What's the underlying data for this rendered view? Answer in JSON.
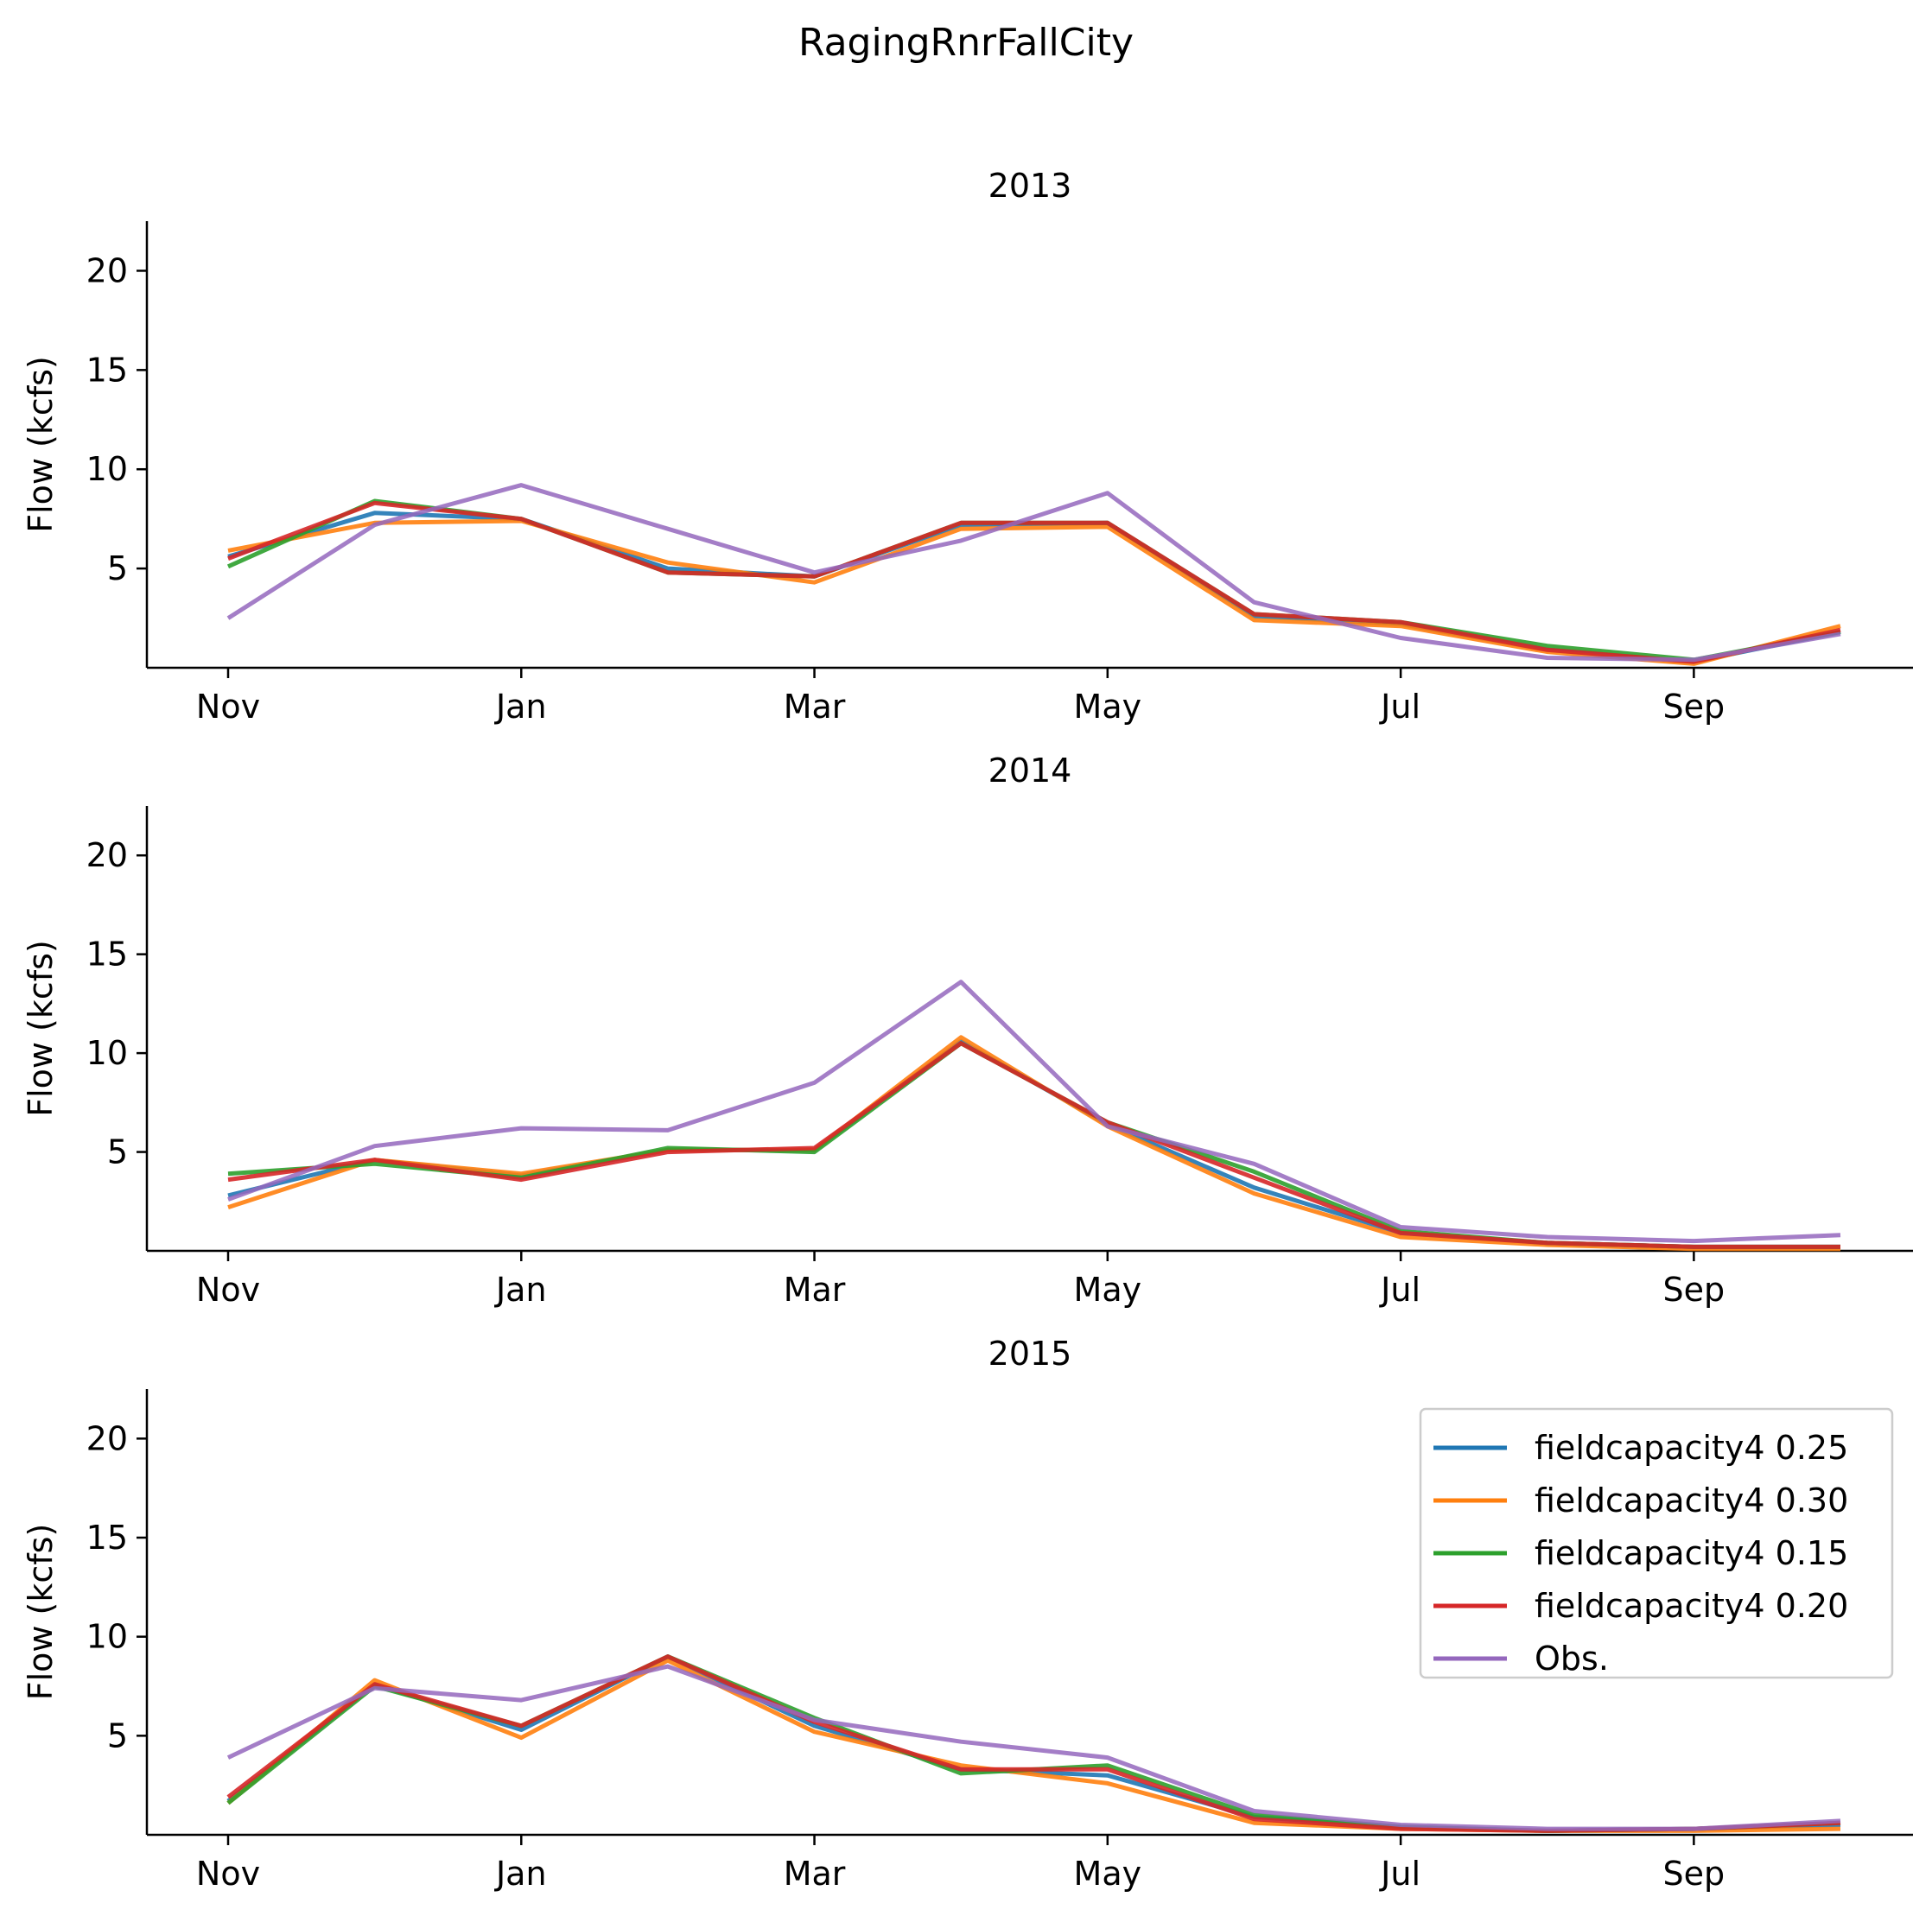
{
  "figure": {
    "title": "RagingRnrFallCity"
  },
  "chart_data": [
    {
      "type": "line",
      "title": "2013",
      "xlabel": "",
      "ylabel": "Flow (kcfs)",
      "x": [
        "Nov",
        "Dec",
        "Jan",
        "Feb",
        "Mar",
        "Apr",
        "May",
        "Jun",
        "Jul",
        "Aug",
        "Sep",
        "Oct"
      ],
      "x_tick_labels": [
        "Nov",
        "Jan",
        "Mar",
        "May",
        "Jul",
        "Sep"
      ],
      "y_ticks": [
        5,
        10,
        15,
        20
      ],
      "ylim": [
        0,
        22.5
      ],
      "series": [
        {
          "name": "fieldcapacity4 0.25",
          "color": "#1f77b4",
          "values": [
            5.6,
            7.8,
            7.5,
            5.0,
            4.6,
            7.2,
            7.3,
            2.6,
            2.2,
            0.9,
            0.3,
            1.8
          ]
        },
        {
          "name": "fieldcapacity4 0.30",
          "color": "#ff7f0e",
          "values": [
            5.9,
            7.3,
            7.4,
            5.3,
            4.3,
            7.0,
            7.1,
            2.4,
            2.1,
            0.8,
            0.2,
            2.1
          ]
        },
        {
          "name": "fieldcapacity4 0.15",
          "color": "#2ca02c",
          "values": [
            5.1,
            8.4,
            7.5,
            4.8,
            4.6,
            7.3,
            7.3,
            2.7,
            2.3,
            1.1,
            0.4,
            1.8
          ]
        },
        {
          "name": "fieldcapacity4 0.20",
          "color": "#d62728",
          "values": [
            5.5,
            8.3,
            7.5,
            4.8,
            4.6,
            7.3,
            7.3,
            2.7,
            2.3,
            0.9,
            0.3,
            1.9
          ]
        },
        {
          "name": "Obs.",
          "color": "#9467bd",
          "values": [
            2.5,
            7.2,
            9.2,
            7.0,
            4.8,
            6.4,
            8.8,
            3.3,
            1.5,
            0.5,
            0.4,
            1.7
          ]
        }
      ]
    },
    {
      "type": "line",
      "title": "2014",
      "xlabel": "",
      "ylabel": "Flow (kcfs)",
      "x": [
        "Nov",
        "Dec",
        "Jan",
        "Feb",
        "Mar",
        "Apr",
        "May",
        "Jun",
        "Jul",
        "Aug",
        "Sep",
        "Oct"
      ],
      "x_tick_labels": [
        "Nov",
        "Jan",
        "Mar",
        "May",
        "Jul",
        "Sep"
      ],
      "y_ticks": [
        5,
        10,
        15,
        20
      ],
      "ylim": [
        0,
        22.5
      ],
      "series": [
        {
          "name": "fieldcapacity4 0.25",
          "color": "#1f77b4",
          "values": [
            2.8,
            4.6,
            3.8,
            5.1,
            5.1,
            10.6,
            6.4,
            3.2,
            0.9,
            0.4,
            0.2,
            0.2
          ]
        },
        {
          "name": "fieldcapacity4 0.30",
          "color": "#ff7f0e",
          "values": [
            2.2,
            4.6,
            3.9,
            5.1,
            5.1,
            10.8,
            6.3,
            2.9,
            0.7,
            0.3,
            0.1,
            0.1
          ]
        },
        {
          "name": "fieldcapacity4 0.15",
          "color": "#2ca02c",
          "values": [
            3.9,
            4.4,
            3.7,
            5.2,
            5.0,
            10.5,
            6.5,
            4.0,
            1.0,
            0.4,
            0.2,
            0.2
          ]
        },
        {
          "name": "fieldcapacity4 0.20",
          "color": "#d62728",
          "values": [
            3.6,
            4.6,
            3.6,
            5.0,
            5.2,
            10.5,
            6.5,
            3.7,
            0.9,
            0.4,
            0.2,
            0.2
          ]
        },
        {
          "name": "Obs.",
          "color": "#9467bd",
          "values": [
            2.6,
            5.3,
            6.2,
            6.1,
            8.5,
            13.6,
            6.3,
            4.4,
            1.2,
            0.7,
            0.5,
            0.8
          ]
        }
      ]
    },
    {
      "type": "line",
      "title": "2015",
      "xlabel": "",
      "ylabel": "Flow (kcfs)",
      "x": [
        "Nov",
        "Dec",
        "Jan",
        "Feb",
        "Mar",
        "Apr",
        "May",
        "Jun",
        "Jul",
        "Aug",
        "Sep",
        "Oct"
      ],
      "x_tick_labels": [
        "Nov",
        "Jan",
        "Mar",
        "May",
        "Jul",
        "Sep"
      ],
      "y_ticks": [
        5,
        10,
        15,
        20
      ],
      "ylim": [
        0,
        22.5
      ],
      "legend": "top-right",
      "series": [
        {
          "name": "fieldcapacity4 0.25",
          "color": "#1f77b4",
          "values": [
            1.7,
            7.6,
            5.3,
            9.0,
            5.5,
            3.3,
            3.0,
            0.9,
            0.4,
            0.2,
            0.3,
            0.5
          ]
        },
        {
          "name": "fieldcapacity4 0.30",
          "color": "#ff7f0e",
          "values": [
            1.6,
            7.8,
            4.9,
            8.8,
            5.2,
            3.5,
            2.6,
            0.6,
            0.3,
            0.2,
            0.2,
            0.3
          ]
        },
        {
          "name": "fieldcapacity4 0.15",
          "color": "#2ca02c",
          "values": [
            1.6,
            7.5,
            5.5,
            9.0,
            5.9,
            3.1,
            3.5,
            1.0,
            0.4,
            0.2,
            0.3,
            0.6
          ]
        },
        {
          "name": "fieldcapacity4 0.20",
          "color": "#d62728",
          "values": [
            1.9,
            7.6,
            5.5,
            9.0,
            5.7,
            3.3,
            3.3,
            0.8,
            0.3,
            0.2,
            0.3,
            0.6
          ]
        },
        {
          "name": "Obs.",
          "color": "#9467bd",
          "values": [
            3.9,
            7.4,
            6.8,
            8.5,
            5.8,
            4.7,
            3.9,
            1.2,
            0.5,
            0.3,
            0.3,
            0.7
          ]
        }
      ]
    }
  ]
}
